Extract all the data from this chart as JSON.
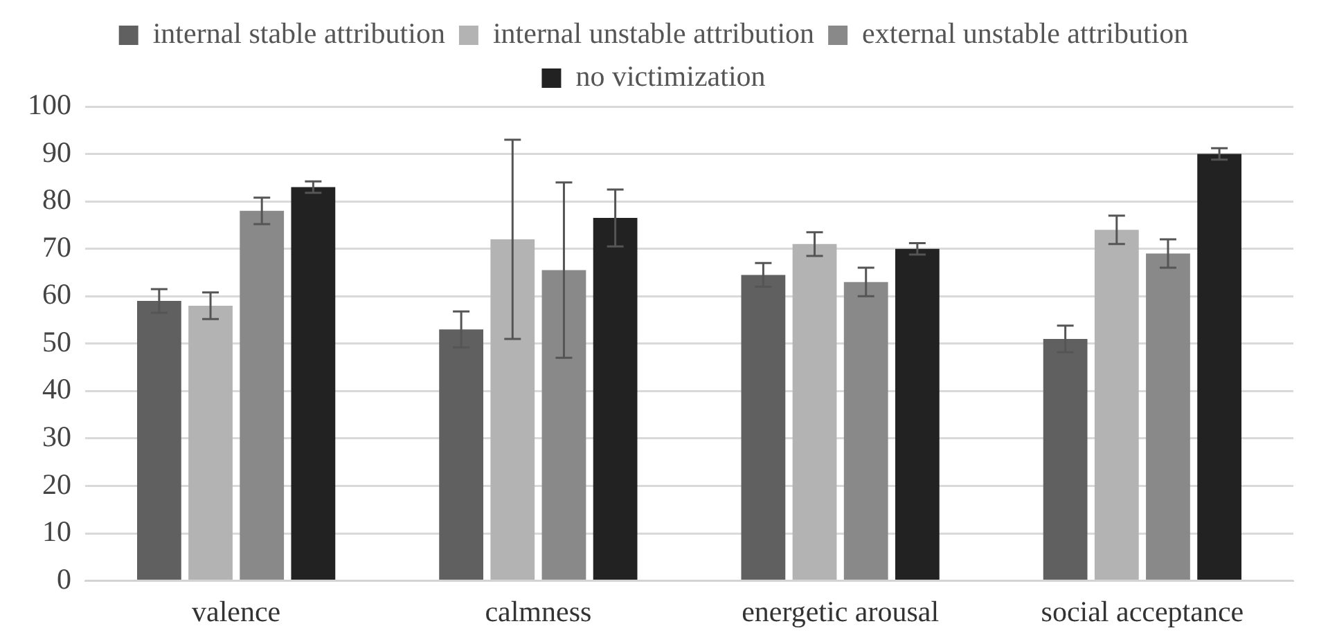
{
  "chart_data": {
    "type": "bar",
    "categories": [
      "valence",
      "calmness",
      "energetic arousal",
      "social acceptance"
    ],
    "series": [
      {
        "name": "internal stable attribution",
        "color": "#606060",
        "values": [
          59,
          53,
          64.5,
          51
        ],
        "errors": [
          2.5,
          3.8,
          2.5,
          2.8
        ]
      },
      {
        "name": "internal unstable attribution",
        "color": "#b3b3b3",
        "values": [
          58,
          72,
          71,
          74
        ],
        "errors": [
          2.8,
          21,
          2.5,
          3
        ]
      },
      {
        "name": "external unstable attribution",
        "color": "#898989",
        "values": [
          78,
          65.5,
          63,
          69
        ],
        "errors": [
          2.8,
          18.5,
          3,
          3
        ]
      },
      {
        "name": "no victimization",
        "color": "#222222",
        "values": [
          83,
          76.5,
          70,
          90
        ],
        "errors": [
          1.2,
          6,
          1.2,
          1.2
        ]
      }
    ],
    "ylim": [
      0,
      100
    ],
    "yticks": [
      0,
      10,
      20,
      30,
      40,
      50,
      60,
      70,
      80,
      90,
      100
    ],
    "grid": "y",
    "legend": "top"
  }
}
